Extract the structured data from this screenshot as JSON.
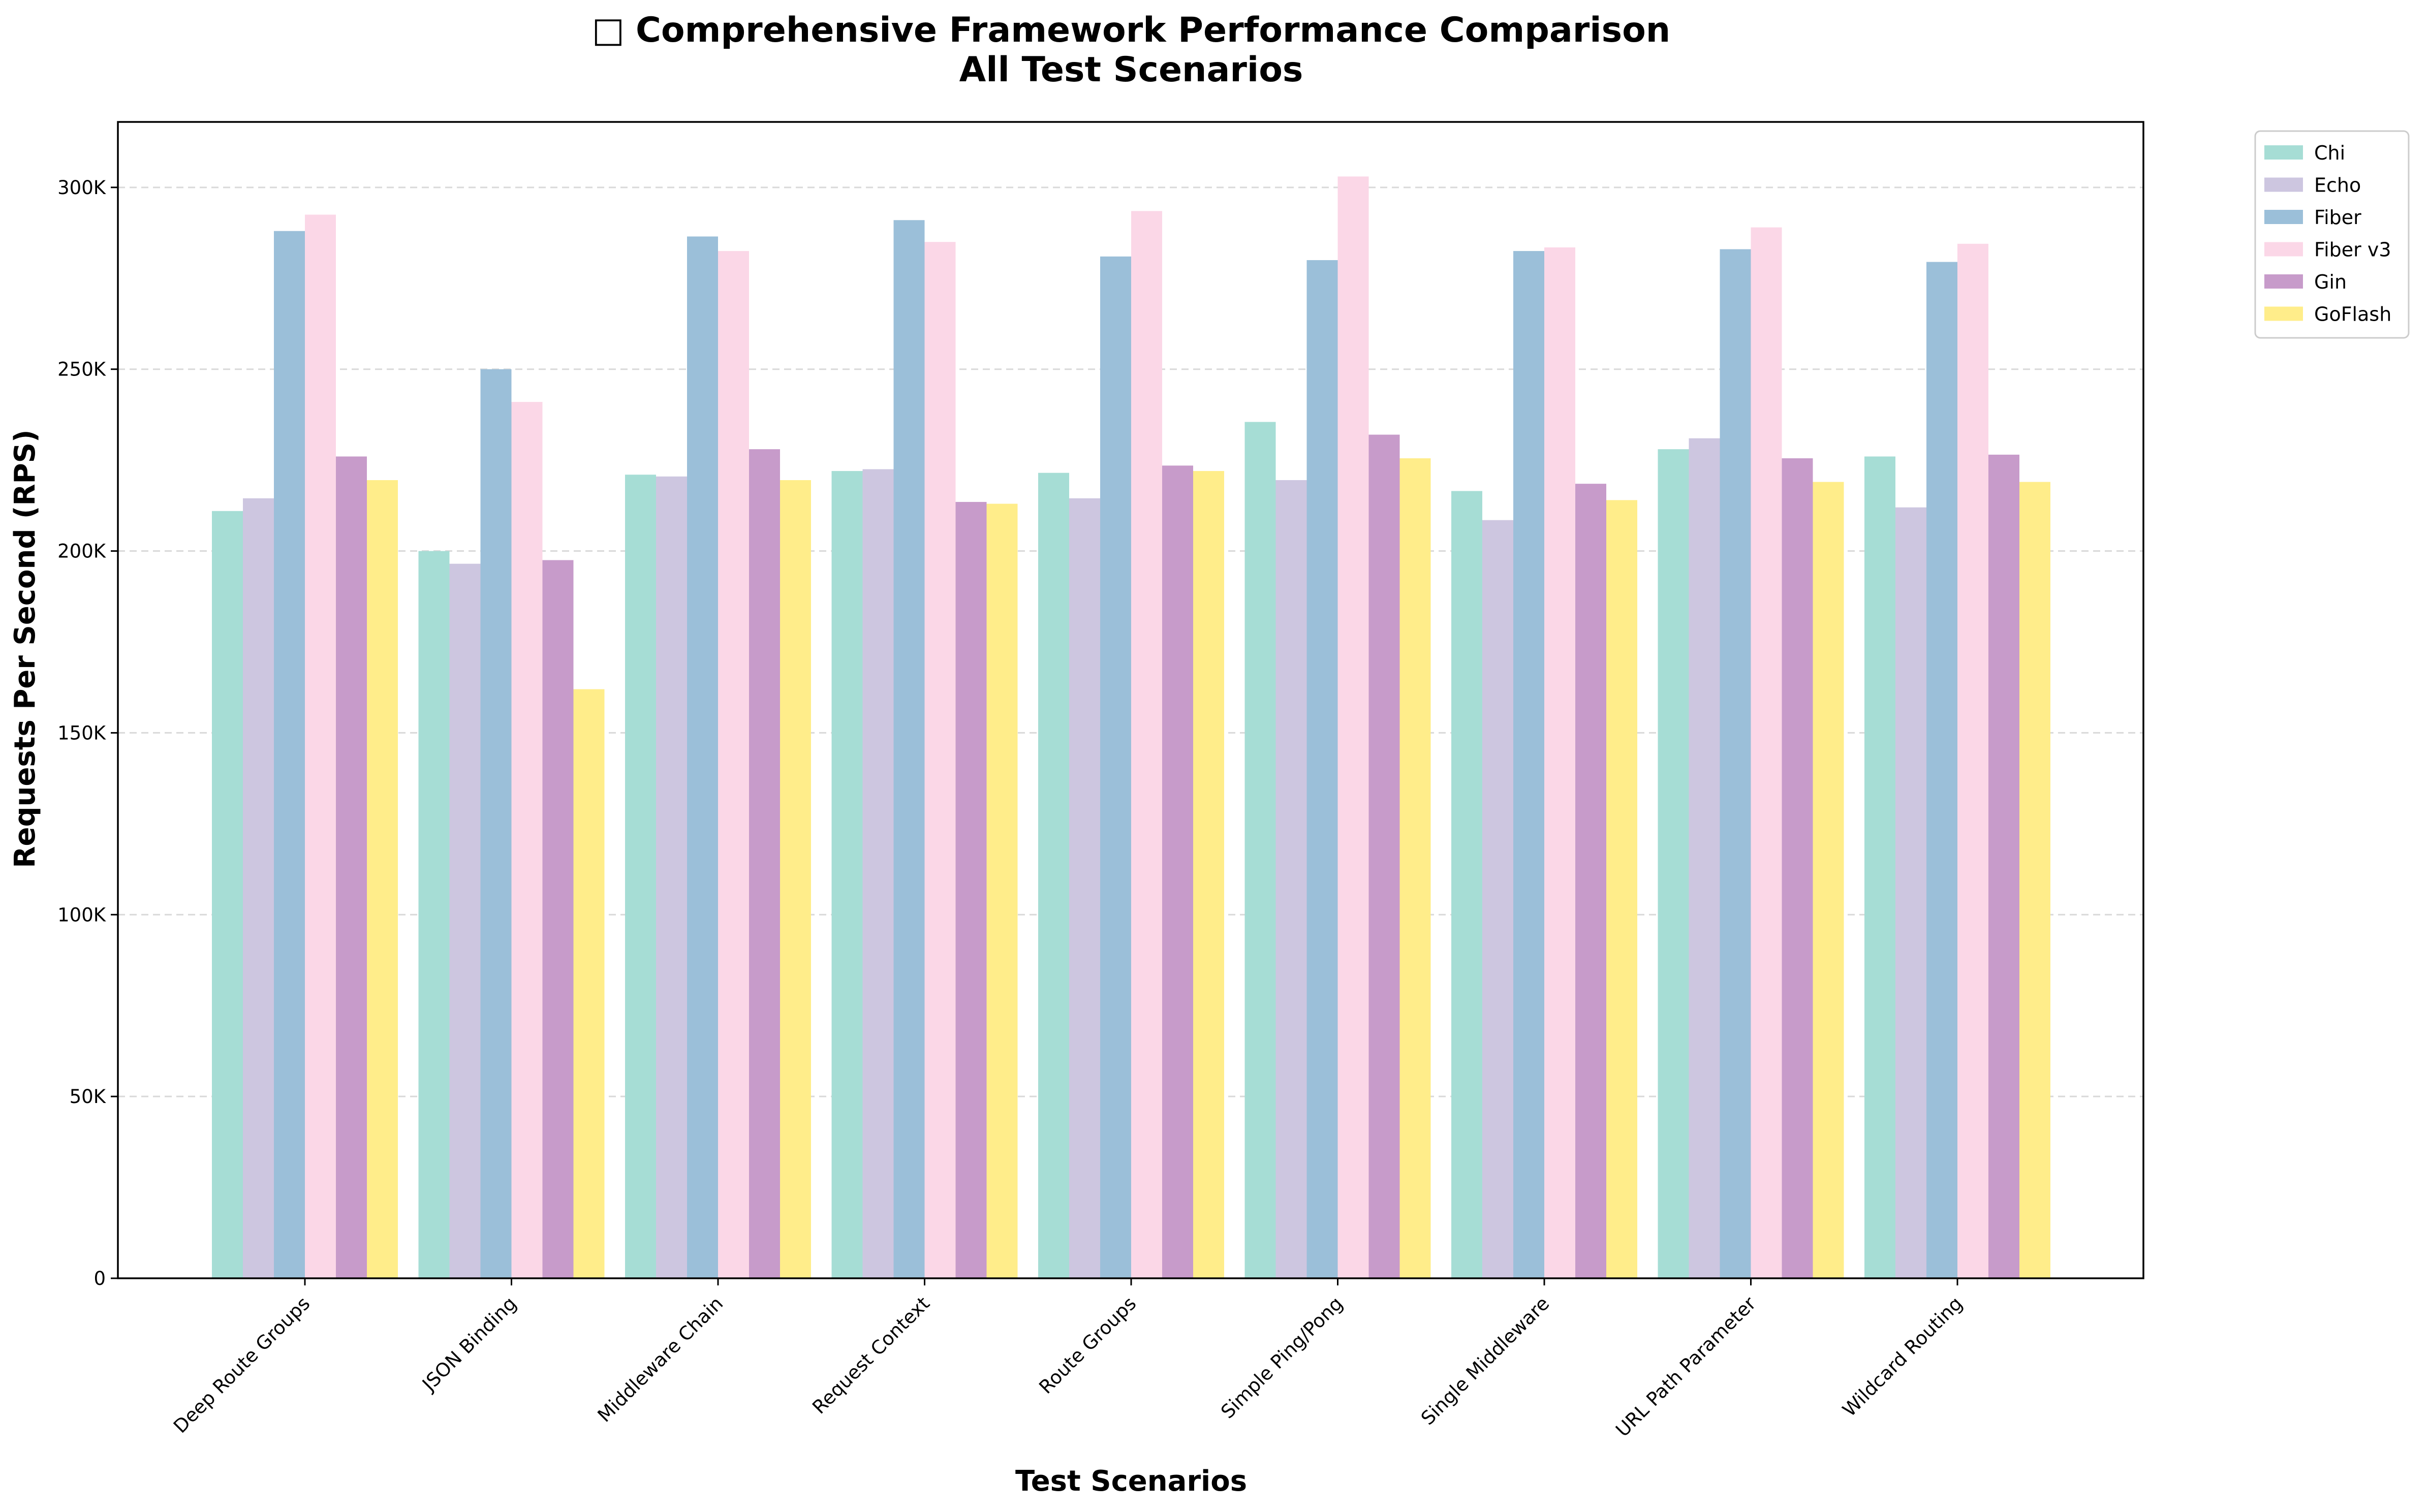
{
  "chart_data": {
    "type": "bar",
    "title_icon": "□",
    "title": "Comprehensive Framework Performance Comparison",
    "subtitle": "All Test Scenarios",
    "xlabel": "Test Scenarios",
    "ylabel": "Requests Per Second (RPS)",
    "ylim": [
      0,
      318000
    ],
    "yticks": [
      0,
      50000,
      100000,
      150000,
      200000,
      250000,
      300000
    ],
    "ytick_labels": [
      "0",
      "50K",
      "100K",
      "150K",
      "200K",
      "250K",
      "300K"
    ],
    "grid": "y-dashed",
    "legend_position": "outside-top-right",
    "categories": [
      "Deep Route Groups",
      "JSON Binding",
      "Middleware Chain",
      "Request Context",
      "Route Groups",
      "Simple Ping/Pong",
      "Single Middleware",
      "URL Path Parameter",
      "Wildcard Routing"
    ],
    "series": [
      {
        "name": "Chi",
        "color": "#a6ddd5",
        "values": [
          211000,
          200000,
          221000,
          222000,
          221500,
          235500,
          216500,
          228000,
          226000
        ]
      },
      {
        "name": "Echo",
        "color": "#cdc6e0",
        "values": [
          214500,
          196500,
          220500,
          222500,
          214500,
          219500,
          208500,
          231000,
          212000
        ]
      },
      {
        "name": "Fiber",
        "color": "#9bbfd9",
        "values": [
          288000,
          250000,
          286500,
          291000,
          281000,
          280000,
          282500,
          283000,
          279500
        ]
      },
      {
        "name": "Fiber v3",
        "color": "#fbd7e7",
        "values": [
          292500,
          241000,
          282500,
          285000,
          293500,
          303000,
          283500,
          289000,
          284500
        ]
      },
      {
        "name": "Gin",
        "color": "#c79bca",
        "values": [
          226000,
          197500,
          228000,
          213500,
          223500,
          232000,
          218500,
          225500,
          226500
        ]
      },
      {
        "name": "GoFlash",
        "color": "#ffed8a",
        "values": [
          219500,
          162000,
          219500,
          213000,
          222000,
          225500,
          214000,
          219000,
          219000
        ]
      }
    ]
  }
}
